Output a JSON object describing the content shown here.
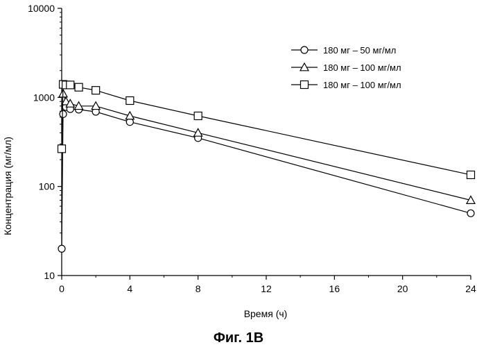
{
  "chart_data": {
    "type": "line",
    "title": "",
    "caption": "Фиг. 1В",
    "xlabel": "Время (ч)",
    "ylabel": "Концентрация (мг/мл)",
    "xlim": [
      0,
      24
    ],
    "ylim": [
      10,
      10000
    ],
    "yscale": "log",
    "grid": false,
    "legend_position": "top-right",
    "xticks": [
      "0",
      "4",
      "8",
      "12",
      "16",
      "20",
      "24"
    ],
    "yticks": [
      "10",
      "100",
      "1000",
      "10000"
    ],
    "series": [
      {
        "name": "180 мг – 50 мг/мл",
        "marker": "circle",
        "x": [
          0,
          0.083,
          0.25,
          0.5,
          1,
          2,
          4,
          8,
          24
        ],
        "y": [
          20,
          650,
          780,
          740,
          730,
          690,
          530,
          350,
          50
        ]
      },
      {
        "name": "180 мг – 100 мг/мл",
        "marker": "triangle",
        "x": [
          0.083,
          0.25,
          0.5,
          1,
          2,
          4,
          8,
          24
        ],
        "y": [
          1100,
          900,
          850,
          800,
          800,
          620,
          400,
          70
        ]
      },
      {
        "name": "180 мг – 100 мг/мл",
        "marker": "square",
        "x": [
          0,
          0.083,
          0.25,
          0.5,
          1,
          2,
          4,
          8,
          24
        ],
        "y": [
          265,
          1400,
          1380,
          1380,
          1300,
          1200,
          920,
          620,
          135
        ]
      }
    ]
  }
}
